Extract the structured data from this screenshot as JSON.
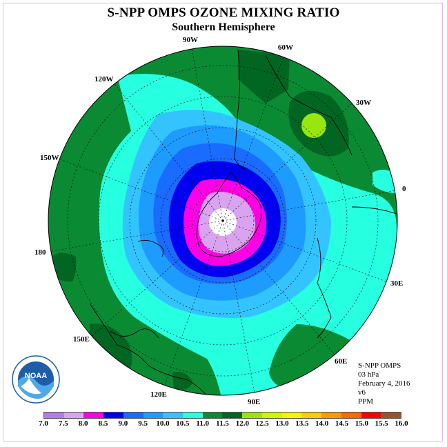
{
  "title": "S-NPP OMPS OZONE MIXING RATIO",
  "subtitle": "Southern Hemisphere",
  "longitude_labels": [
    "90W",
    "60W",
    "30W",
    "0",
    "30E",
    "60E",
    "90E",
    "120E",
    "150E",
    "180",
    "150W",
    "120W"
  ],
  "info": {
    "instrument": "S-NPP OMPS",
    "pressure": "03 hPa",
    "date": "February 4, 2016",
    "version": "v6",
    "units": "PPM"
  },
  "logo": {
    "text": "NOAA",
    "ring_text": "NATIONAL OCEANIC AND ATMOSPHERIC ADMINISTRATION U.S. DEPARTMENT OF COMMERCE"
  },
  "colorbar": {
    "ticks": [
      "7.0",
      "7.5",
      "8.0",
      "8.5",
      "9.0",
      "9.5",
      "10.0",
      "10.5",
      "11.0",
      "11.5",
      "12.0",
      "12.5",
      "13.0",
      "13.5",
      "14.0",
      "14.5",
      "15.0",
      "15.5",
      "16.0"
    ],
    "colors": [
      "#b57be8",
      "#d9a3f0",
      "#ff00e6",
      "#0000f0",
      "#1a6bff",
      "#1e9bff",
      "#33c4ff",
      "#26ffe0",
      "#0a8a33",
      "#006622",
      "#99e60d",
      "#ccf500",
      "#f5f500",
      "#ffcc00",
      "#ff9900",
      "#ff6600",
      "#ff0000",
      "#995533"
    ]
  },
  "map_colors": {
    "light_green": "#0a8a33",
    "dark_green": "#006622",
    "cyan": "#26ffe0",
    "light_blue": "#33c4ff",
    "medium_blue": "#1e9bff",
    "blue": "#1a6bff",
    "dark_blue": "#0000f0",
    "magenta": "#ff00e6",
    "lavender": "#d9a3f0",
    "white": "#ffffff",
    "yellow_green": "#99e60d"
  }
}
